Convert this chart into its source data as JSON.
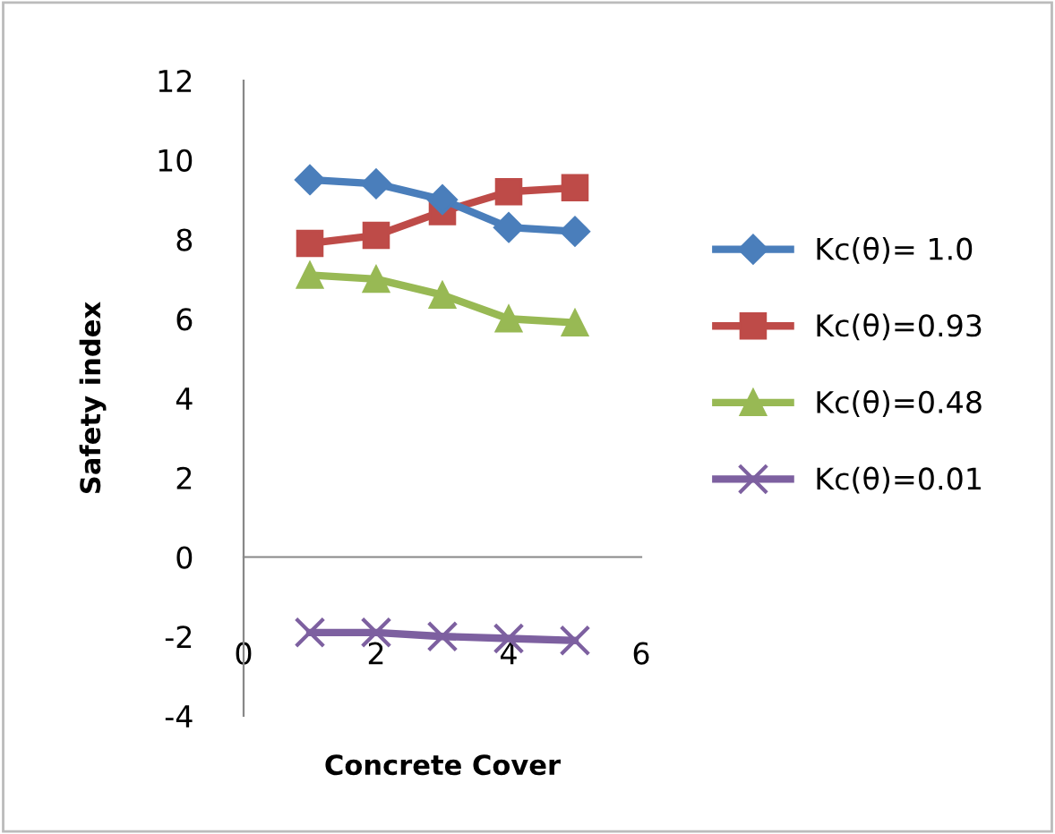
{
  "chart_data": {
    "type": "line",
    "xlabel": "Concrete Cover",
    "ylabel": "Safety index",
    "xlim": [
      0,
      6
    ],
    "xticks": [
      0,
      2,
      4,
      6
    ],
    "ylim": [
      -4,
      12
    ],
    "yticks": [
      -4,
      -2,
      0,
      2,
      4,
      6,
      8,
      10,
      12
    ],
    "legend": "right",
    "line_style": "solid",
    "series": [
      {
        "name": "Kc(θ)= 1.0",
        "color": "#4a7ebb",
        "marker": "diamond",
        "x": [
          1,
          2,
          3,
          4,
          5
        ],
        "values": [
          9.5,
          9.4,
          9.0,
          8.3,
          8.2
        ]
      },
      {
        "name": "Kc(θ)=0.93",
        "color": "#be4b48",
        "marker": "square",
        "x": [
          1,
          2,
          3,
          4,
          5
        ],
        "values": [
          7.9,
          8.1,
          8.7,
          9.2,
          9.3
        ]
      },
      {
        "name": "Kc(θ)=0.48",
        "color": "#98b954",
        "marker": "triangle",
        "x": [
          1,
          2,
          3,
          4,
          5
        ],
        "values": [
          7.1,
          7.0,
          6.6,
          6.0,
          5.9
        ]
      },
      {
        "name": "Kc(θ)=0.01",
        "color": "#7d60a0",
        "marker": "cross",
        "x": [
          1,
          2,
          3,
          4,
          5
        ],
        "values": [
          -1.9,
          -1.9,
          -2.0,
          -2.05,
          -2.1
        ]
      }
    ]
  }
}
